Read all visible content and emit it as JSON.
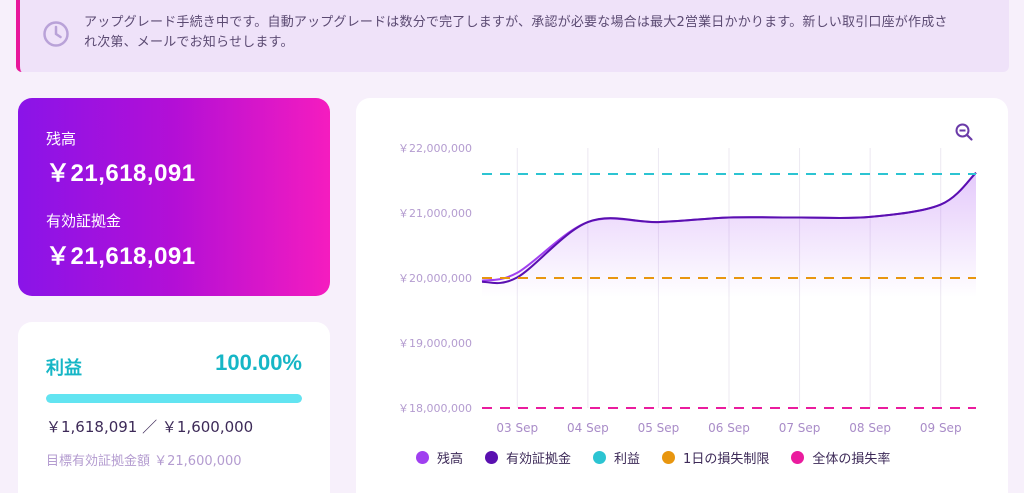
{
  "notice": {
    "icon": "clock-icon",
    "line1": "アップグレード手続き中です。自動アップグレードは数分で完了しますが、承認が必要な場合は最大2営業日かかります。新しい取引口座が作成さ",
    "line2": "れ次第、メールでお知らせします。"
  },
  "balance": {
    "balance_label": "残高",
    "balance_value": "￥21,618,091",
    "margin_label": "有効証拠金",
    "margin_value": "￥21,618,091"
  },
  "profit": {
    "title": "利益",
    "percent": "100.00%",
    "progress": 1.0,
    "amounts": "￥1,618,091 ／ ￥1,600,000",
    "target": "目標有効証拠金額 ￥21,600,000"
  },
  "colors": {
    "accent": "#8a14e8",
    "magenta": "#e8179a",
    "teal": "#16b6c6",
    "balance_series": "#a040f0",
    "margin_series": "#5a10b0",
    "profit_line": "#2cc4d2",
    "daily_loss_line": "#e8960f",
    "total_loss_line": "#ea1c9e"
  },
  "chart_data": {
    "type": "line",
    "x": [
      "03 Sep",
      "04 Sep",
      "05 Sep",
      "06 Sep",
      "07 Sep",
      "08 Sep",
      "09 Sep"
    ],
    "y_ticks": [
      "￥22,000,000",
      "￥21,000,000",
      "￥20,000,000",
      "￥19,000,000",
      "￥18,000,000"
    ],
    "ylim": [
      18000000,
      22000000
    ],
    "series": [
      {
        "name": "残高",
        "points": [
          [
            2.5,
            19960000
          ],
          [
            3,
            20080000
          ],
          [
            4,
            20860000
          ],
          [
            5,
            20860000
          ],
          [
            6,
            20930000
          ],
          [
            7,
            20930000
          ],
          [
            8,
            20940000
          ],
          [
            9,
            21130000
          ],
          [
            9.5,
            21620000
          ]
        ]
      },
      {
        "name": "有効証拠金",
        "points": [
          [
            2.5,
            19940000
          ],
          [
            3,
            20010000
          ],
          [
            4,
            20860000
          ],
          [
            5,
            20860000
          ],
          [
            6,
            20930000
          ],
          [
            7,
            20930000
          ],
          [
            8,
            20940000
          ],
          [
            9,
            21130000
          ],
          [
            9.5,
            21620000
          ]
        ]
      }
    ],
    "reference_lines": [
      {
        "name": "利益",
        "value": 21600000
      },
      {
        "name": "1日の損失制限",
        "value": 20000000
      },
      {
        "name": "全体の損失率",
        "value": 18000000
      }
    ],
    "legend": [
      "残高",
      "有効証拠金",
      "利益",
      "1日の損失制限",
      "全体の損失率"
    ],
    "grid": true,
    "legend_position": "bottom"
  }
}
